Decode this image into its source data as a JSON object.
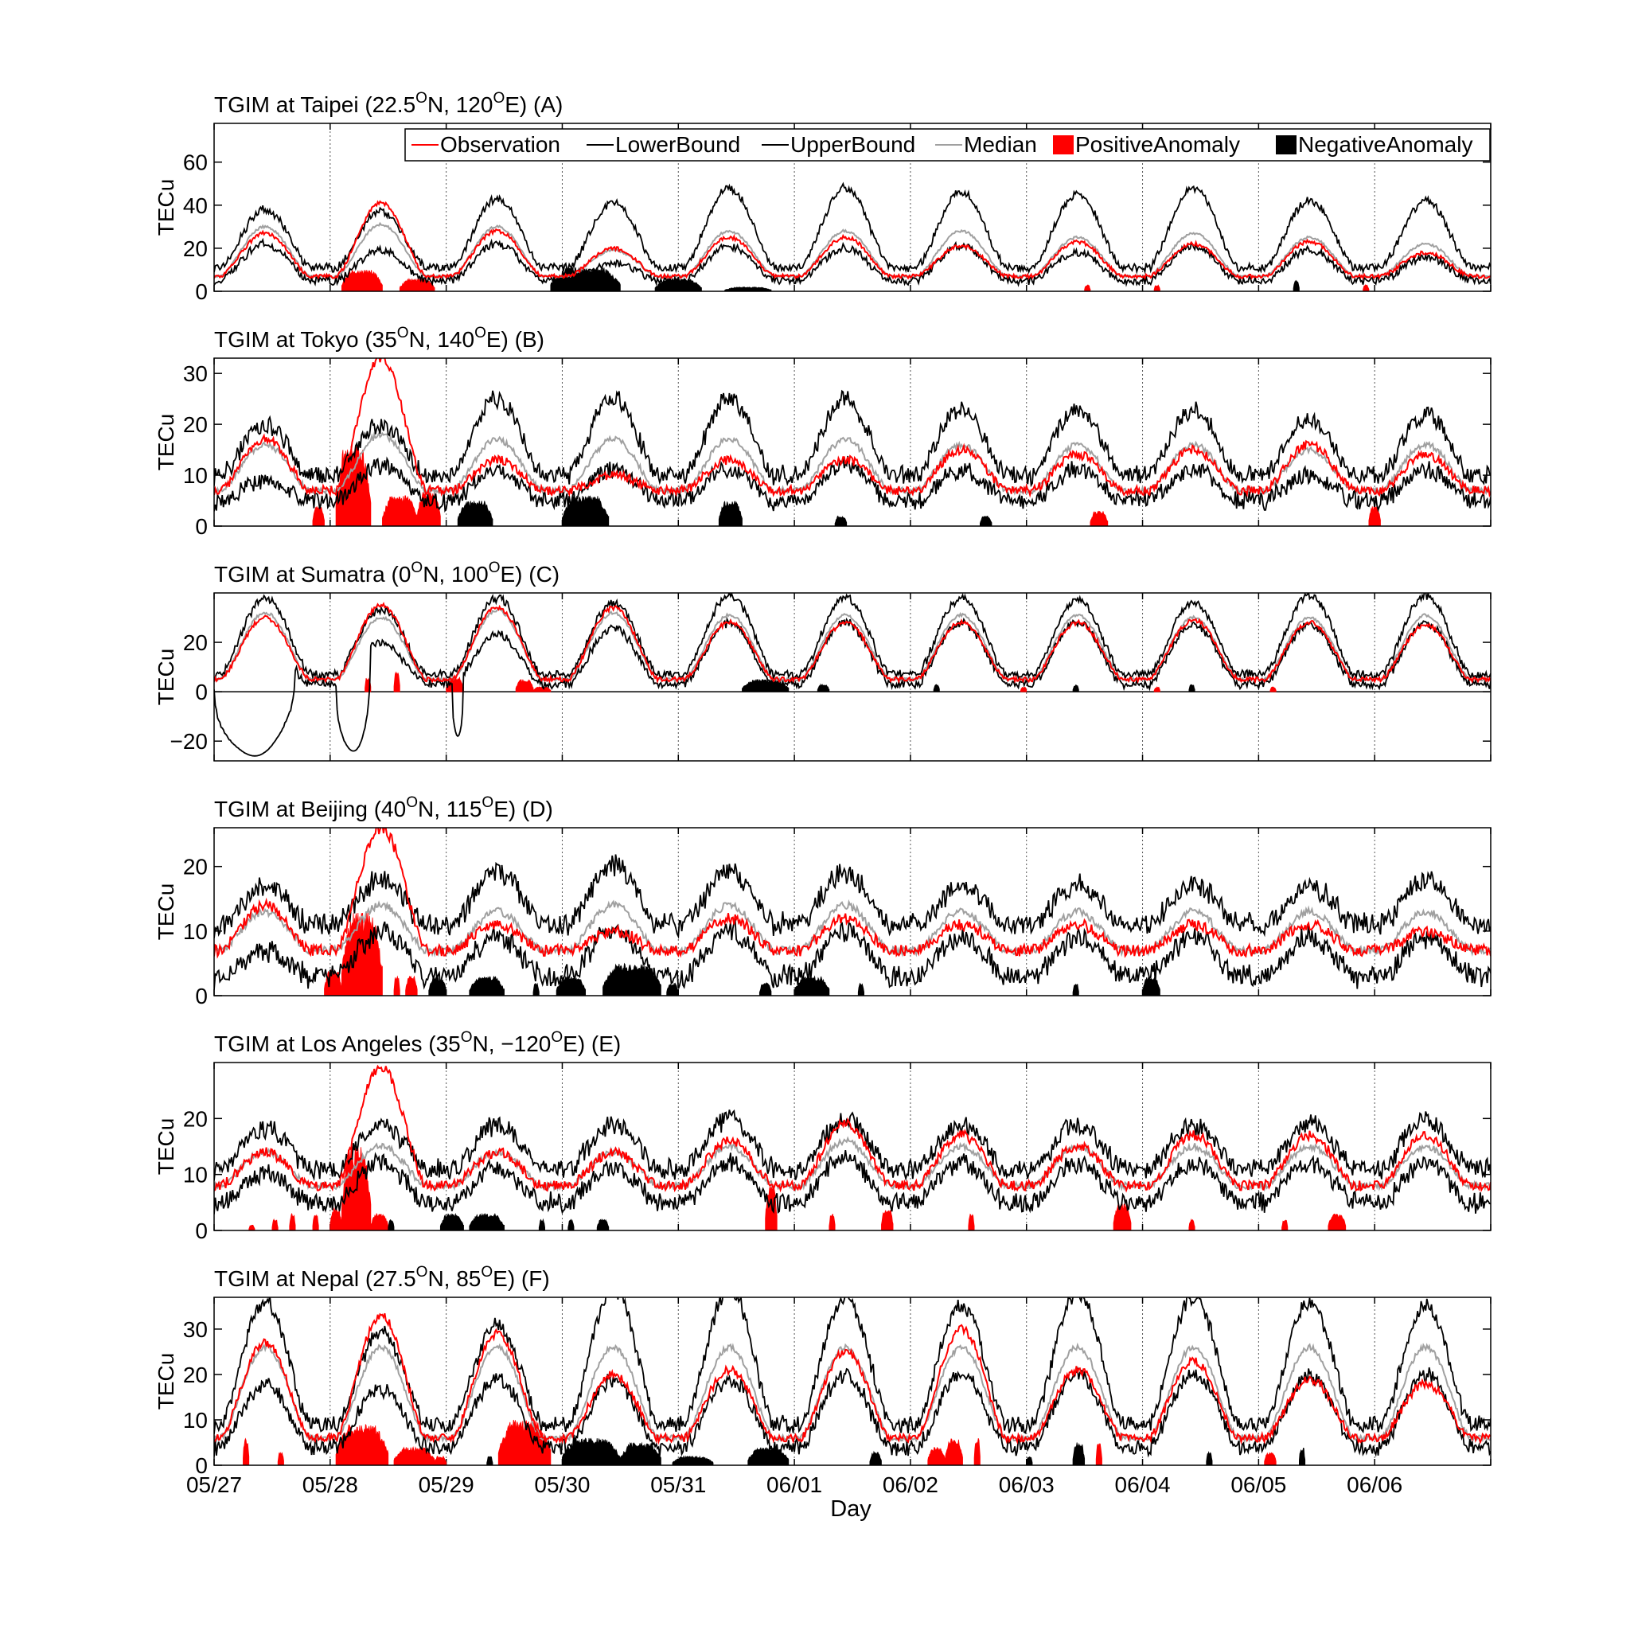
{
  "chart_data": {
    "type": "line",
    "xlabel": "Day",
    "x_ticks": [
      "05/27",
      "05/28",
      "05/29",
      "05/30",
      "05/31",
      "06/01",
      "06/02",
      "06/03",
      "06/04",
      "06/05",
      "06/06"
    ],
    "x_range_days": [
      0,
      11
    ],
    "legend": {
      "placement": "top-right of panel A",
      "entries": [
        {
          "name": "Observation",
          "color": "#ff0000",
          "kind": "line"
        },
        {
          "name": "LowerBound",
          "color": "#000000",
          "kind": "line"
        },
        {
          "name": "UpperBound",
          "color": "#000000",
          "kind": "line"
        },
        {
          "name": "Median",
          "color": "#a0a0a0",
          "kind": "line"
        },
        {
          "name": "PositiveAnomaly",
          "color": "#ff0000",
          "kind": "fill"
        },
        {
          "name": "NegativeAnomaly",
          "color": "#000000",
          "kind": "fill"
        }
      ]
    },
    "panels": [
      {
        "id": "A",
        "title_pre": "TGIM at Taipei (22.5",
        "title_mid": "N, 120",
        "title_post": "E) (A)",
        "sup": "O",
        "ylabel": "TECu",
        "ylim": [
          0,
          78
        ],
        "yticks": [
          0,
          20,
          40,
          60
        ],
        "median": {
          "base": 7,
          "peaks": [
            30,
            31,
            30,
            19,
            28,
            28,
            28,
            25,
            27,
            25,
            22
          ]
        },
        "obs": {
          "base": 7,
          "peaks": [
            27,
            41,
            28,
            20,
            25,
            25,
            21,
            23,
            22,
            23,
            18
          ]
        },
        "upper_pad": {
          "base": 4,
          "peaks": [
            8,
            6,
            13,
            22,
            20,
            20,
            18,
            20,
            21,
            17,
            20
          ]
        },
        "lower_pad": {
          "base": 2,
          "peaks": [
            8,
            12,
            8,
            6,
            7,
            8,
            7,
            7,
            6,
            6,
            6
          ]
        },
        "pos_anom": [
          [
            1.1,
            1.45,
            10
          ],
          [
            1.6,
            1.9,
            6
          ],
          [
            7.5,
            7.55,
            3
          ],
          [
            8.1,
            8.15,
            3
          ],
          [
            9.9,
            9.95,
            3
          ]
        ],
        "neg_anom": [
          [
            2.9,
            3.5,
            11
          ],
          [
            3.8,
            4.2,
            6
          ],
          [
            4.4,
            4.8,
            2
          ],
          [
            9.3,
            9.35,
            5
          ]
        ]
      },
      {
        "id": "B",
        "title_pre": "TGIM at Tokyo (35",
        "title_mid": "N, 140",
        "title_post": "E) (B)",
        "sup": "O",
        "ylabel": "TECu",
        "ylim": [
          0,
          33
        ],
        "yticks": [
          0,
          10,
          20,
          30
        ],
        "median": {
          "base": 7,
          "peaks": [
            16,
            18,
            17,
            17,
            17,
            17,
            16,
            16,
            16,
            15,
            16
          ]
        },
        "obs": {
          "base": 7,
          "peaks": [
            17,
            33,
            13,
            10,
            13,
            13,
            15,
            14,
            15,
            16,
            14
          ]
        },
        "upper_pad": {
          "base": 3,
          "peaks": [
            4,
            2,
            8,
            8,
            8,
            8,
            7,
            7,
            7,
            6,
            6
          ]
        },
        "lower_pad": {
          "base": 2,
          "peaks": [
            7,
            6,
            6,
            6,
            6,
            5,
            5,
            5,
            5,
            5,
            5
          ]
        },
        "pos_anom": [
          [
            0.85,
            0.95,
            4
          ],
          [
            1.05,
            1.35,
            16
          ],
          [
            1.45,
            1.75,
            6
          ],
          [
            1.75,
            1.95,
            7
          ],
          [
            7.55,
            7.7,
            3
          ],
          [
            9.95,
            10.05,
            4
          ]
        ],
        "neg_anom": [
          [
            2.1,
            2.4,
            5
          ],
          [
            3.0,
            3.4,
            6
          ],
          [
            4.35,
            4.55,
            5
          ],
          [
            5.35,
            5.45,
            2
          ],
          [
            6.6,
            6.7,
            2
          ]
        ]
      },
      {
        "id": "C",
        "title_pre": "TGIM at Sumatra (0",
        "title_mid": "N, 100",
        "title_post": "E) (C)",
        "sup": "O",
        "ylabel": "TECu",
        "ylim": [
          -28,
          40
        ],
        "yticks": [
          -20,
          0,
          20
        ],
        "median": {
          "base": 5,
          "peaks": [
            32,
            30,
            33,
            32,
            31,
            31,
            31,
            31,
            30,
            30,
            31
          ]
        },
        "obs": {
          "base": 5,
          "peaks": [
            30,
            35,
            34,
            34,
            28,
            28,
            28,
            28,
            29,
            28,
            27
          ]
        },
        "upper_pad": {
          "base": 2,
          "peaks": [
            6,
            3,
            5,
            4,
            8,
            7,
            7,
            6,
            6,
            9,
            8
          ]
        },
        "lower_pad": {
          "base": 2,
          "peaks": [
            10,
            10,
            10,
            6,
            3,
            3,
            3,
            3,
            3,
            3,
            3
          ]
        },
        "dips": [
          [
            0.0,
            0.7,
            -26
          ],
          [
            1.05,
            1.35,
            -24
          ],
          [
            2.05,
            2.15,
            -18
          ]
        ],
        "pos_anom": [
          [
            1.3,
            1.35,
            6
          ],
          [
            1.55,
            1.6,
            8
          ],
          [
            2.0,
            2.15,
            6
          ],
          [
            2.6,
            2.75,
            5
          ],
          [
            2.75,
            2.9,
            2
          ],
          [
            6.95,
            7.0,
            2
          ],
          [
            8.1,
            8.15,
            2
          ],
          [
            9.1,
            9.15,
            2
          ]
        ],
        "neg_anom": [
          [
            4.55,
            4.95,
            5
          ],
          [
            5.2,
            5.3,
            3
          ],
          [
            6.2,
            6.25,
            3
          ],
          [
            7.4,
            7.45,
            3
          ],
          [
            8.4,
            8.45,
            3
          ]
        ]
      },
      {
        "id": "D",
        "title_pre": "TGIM at Beijing (40",
        "title_mid": "N, 115",
        "title_post": "E) (D)",
        "sup": "O",
        "ylabel": "TECu",
        "ylim": [
          0,
          26
        ],
        "yticks": [
          0,
          10,
          20
        ],
        "median": {
          "base": 7,
          "peaks": [
            13,
            14,
            13,
            14,
            14,
            14,
            13,
            13,
            13,
            13,
            13
          ]
        },
        "obs": {
          "base": 7,
          "peaks": [
            14,
            26,
            11,
            10,
            12,
            12,
            11,
            11,
            11,
            11,
            10
          ]
        },
        "upper_pad": {
          "base": 4,
          "peaks": [
            4,
            4,
            6,
            6,
            5,
            5,
            4,
            4,
            4,
            4,
            5
          ]
        },
        "lower_pad": {
          "base": 4,
          "peaks": [
            6,
            4,
            4,
            4,
            4,
            4,
            4,
            4,
            4,
            4,
            4
          ]
        },
        "pos_anom": [
          [
            0.95,
            1.1,
            4
          ],
          [
            1.1,
            1.45,
            13
          ],
          [
            1.55,
            1.6,
            3
          ],
          [
            1.65,
            1.75,
            3
          ]
        ],
        "neg_anom": [
          [
            1.85,
            2.0,
            3
          ],
          [
            2.2,
            2.5,
            3
          ],
          [
            2.75,
            2.8,
            2
          ],
          [
            2.95,
            3.2,
            3
          ],
          [
            3.35,
            3.85,
            5
          ],
          [
            3.9,
            4.0,
            2
          ],
          [
            4.7,
            4.8,
            2
          ],
          [
            5.0,
            5.3,
            3
          ],
          [
            5.55,
            5.6,
            2
          ],
          [
            7.4,
            7.45,
            2
          ],
          [
            8.0,
            8.15,
            3
          ]
        ]
      },
      {
        "id": "E",
        "title_pre": "TGIM at Los Angeles (35",
        "title_mid": "N, −120",
        "title_post": "E) (E)",
        "sup": "O",
        "ylabel": "TECu",
        "ylim": [
          0,
          30
        ],
        "yticks": [
          0,
          10,
          20
        ],
        "median": {
          "base": 8,
          "peaks": [
            14,
            15,
            14,
            14,
            15,
            16,
            15,
            15,
            15,
            15,
            15
          ]
        },
        "obs": {
          "base": 8,
          "peaks": [
            14,
            29,
            14,
            14,
            16,
            19,
            17,
            15,
            17,
            17,
            17
          ]
        },
        "upper_pad": {
          "base": 3,
          "peaks": [
            4,
            4,
            5,
            5,
            5,
            4,
            4,
            4,
            4,
            4,
            5
          ]
        },
        "lower_pad": {
          "base": 3,
          "peaks": [
            4,
            3,
            3,
            3,
            3,
            3,
            3,
            3,
            3,
            3,
            3
          ]
        },
        "pos_anom": [
          [
            0.3,
            0.35,
            1
          ],
          [
            0.5,
            0.55,
            2
          ],
          [
            0.65,
            0.7,
            3
          ],
          [
            0.85,
            0.9,
            3
          ],
          [
            1.0,
            1.1,
            4
          ],
          [
            1.1,
            1.35,
            15
          ],
          [
            1.35,
            1.5,
            3
          ],
          [
            4.75,
            4.85,
            8
          ],
          [
            5.3,
            5.35,
            3
          ],
          [
            5.75,
            5.85,
            4
          ],
          [
            6.5,
            6.55,
            3
          ],
          [
            7.75,
            7.9,
            5
          ],
          [
            8.4,
            8.45,
            2
          ],
          [
            9.2,
            9.25,
            2
          ],
          [
            9.6,
            9.75,
            3
          ]
        ],
        "neg_anom": [
          [
            1.5,
            1.55,
            2
          ],
          [
            1.95,
            2.15,
            3
          ],
          [
            2.2,
            2.5,
            3
          ],
          [
            2.8,
            2.85,
            2
          ],
          [
            3.05,
            3.1,
            2
          ],
          [
            3.3,
            3.4,
            2
          ]
        ]
      },
      {
        "id": "F",
        "title_pre": "TGIM at Nepal (27.5",
        "title_mid": "N, 85",
        "title_post": "E) (F)",
        "sup": "O",
        "ylabel": "TECu",
        "ylim": [
          0,
          37
        ],
        "yticks": [
          0,
          10,
          20,
          30
        ],
        "median": {
          "base": 6,
          "peaks": [
            26,
            26,
            26,
            26,
            26,
            26,
            26,
            26,
            26,
            26,
            26
          ]
        },
        "obs": {
          "base": 6,
          "peaks": [
            27,
            33,
            29,
            20,
            21,
            25,
            30,
            21,
            23,
            19,
            18
          ]
        },
        "upper_pad": {
          "base": 3,
          "peaks": [
            10,
            3,
            5,
            13,
            13,
            11,
            9,
            12,
            11,
            10,
            9
          ]
        },
        "lower_pad": {
          "base": 2,
          "peaks": [
            8,
            9,
            7,
            7,
            7,
            6,
            6,
            6,
            6,
            6,
            6
          ]
        },
        "pos_anom": [
          [
            0.25,
            0.3,
            6
          ],
          [
            0.55,
            0.6,
            3
          ],
          [
            1.05,
            1.5,
            9
          ],
          [
            1.55,
            1.9,
            4
          ],
          [
            1.9,
            2.0,
            2
          ],
          [
            2.45,
            2.9,
            10
          ],
          [
            6.15,
            6.3,
            4
          ],
          [
            6.3,
            6.45,
            6
          ],
          [
            6.55,
            6.6,
            6
          ],
          [
            7.6,
            7.65,
            5
          ],
          [
            9.05,
            9.15,
            3
          ]
        ],
        "neg_anom": [
          [
            2.35,
            2.4,
            2
          ],
          [
            3.0,
            3.5,
            6
          ],
          [
            3.5,
            3.85,
            5
          ],
          [
            3.95,
            4.3,
            2
          ],
          [
            4.6,
            4.95,
            4
          ],
          [
            5.65,
            5.75,
            3
          ],
          [
            7.0,
            7.05,
            2
          ],
          [
            7.4,
            7.5,
            5
          ],
          [
            8.55,
            8.6,
            3
          ],
          [
            9.35,
            9.4,
            4
          ]
        ]
      }
    ]
  }
}
